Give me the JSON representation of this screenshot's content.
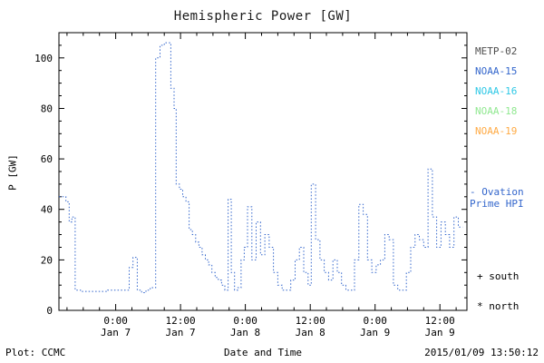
{
  "title": "Hemispheric Power [GW]",
  "ylabel": "P [GW]",
  "footer": {
    "plot": "Plot: CCMC",
    "xlabel": "Date and Time",
    "timestamp": "2015/01/09 13:50:12"
  },
  "colors": {
    "axis": "#000000",
    "accent_blue": "#3366cc"
  },
  "legend": {
    "position": "right",
    "items": [
      {
        "label": "METP-02",
        "color": "#4d4d4d"
      },
      {
        "label": "NOAA-15",
        "color": "#3366cc"
      },
      {
        "label": "NOAA-16",
        "color": "#2ec8e6"
      },
      {
        "label": "NOAA-18",
        "color": "#90e890"
      },
      {
        "label": "NOAA-19",
        "color": "#ffaa44"
      }
    ]
  },
  "annotations": {
    "ovation_line1": "- Ovation",
    "ovation_line2": "Prime HPI",
    "south": "+ south",
    "north": "* north"
  },
  "chart_data": {
    "type": "line",
    "style": "step-dotted",
    "title": "Hemispheric Power [GW]",
    "xlabel": "Date and Time",
    "ylabel": "P [GW]",
    "x_unit": "hours from 2015-01-07 00:00 UT",
    "xlim": [
      -10.5,
      65
    ],
    "ylim": [
      0,
      110
    ],
    "grid": false,
    "yticks": [
      0,
      20,
      40,
      60,
      80,
      100
    ],
    "y_minor_step": 5,
    "x_minor_step": 3,
    "xticks": [
      {
        "t": 0,
        "time": "0:00",
        "date": "Jan 7"
      },
      {
        "t": 12,
        "time": "12:00",
        "date": "Jan 7"
      },
      {
        "t": 24,
        "time": "0:00",
        "date": "Jan 8"
      },
      {
        "t": 36,
        "time": "12:00",
        "date": "Jan 8"
      },
      {
        "t": 48,
        "time": "0:00",
        "date": "Jan 9"
      },
      {
        "t": 60,
        "time": "12:00",
        "date": "Jan 9"
      }
    ],
    "series": [
      {
        "name": "NOAA-15 Ovation Prime HPI",
        "color": "#3366cc",
        "x": [
          -10.5,
          -9.2,
          -8.6,
          -8.1,
          -7.5,
          -6.5,
          -5.5,
          -4.5,
          -3.5,
          -2.5,
          -1.5,
          -0.5,
          0.5,
          1.5,
          2.5,
          3.2,
          4.0,
          4.8,
          5.6,
          6.4,
          7.4,
          8.2,
          9.0,
          10.2,
          10.8,
          11.2,
          11.8,
          12.4,
          13.0,
          13.6,
          14.2,
          14.8,
          15.4,
          16.0,
          16.6,
          17.2,
          17.8,
          18.4,
          19.0,
          19.6,
          20.2,
          20.8,
          21.4,
          22.0,
          22.6,
          23.2,
          23.8,
          24.4,
          25.2,
          26.0,
          26.8,
          27.6,
          28.4,
          29.2,
          30.0,
          30.8,
          31.6,
          32.4,
          33.2,
          34.0,
          34.8,
          35.6,
          36.2,
          37.0,
          37.8,
          38.6,
          39.4,
          40.2,
          41.0,
          41.8,
          42.6,
          43.4,
          44.2,
          45.0,
          45.8,
          46.6,
          47.4,
          48.2,
          49.0,
          49.8,
          50.6,
          51.4,
          52.2,
          53.0,
          53.8,
          54.6,
          55.4,
          56.2,
          57.0,
          57.8,
          58.6,
          59.4,
          60.2,
          61.0,
          61.8,
          62.6,
          63.4
        ],
        "y": [
          45,
          43,
          35,
          37,
          8,
          7.5,
          7.5,
          7.5,
          7.5,
          7.5,
          8,
          8,
          8,
          8,
          17,
          21,
          8,
          7,
          8,
          9,
          100,
          105,
          106,
          88,
          80,
          50,
          48,
          45,
          43,
          32,
          30,
          27,
          25,
          22,
          20,
          18,
          15,
          13,
          12,
          10,
          8,
          44,
          15,
          8,
          9,
          20,
          25,
          41,
          20,
          35,
          22,
          30,
          25,
          15,
          10,
          8,
          8,
          12,
          20,
          25,
          15,
          10,
          50,
          28,
          20,
          15,
          12,
          20,
          15,
          10,
          8,
          8,
          20,
          42,
          38,
          20,
          15,
          18,
          20,
          30,
          28,
          10,
          8,
          8,
          15,
          25,
          30,
          28,
          25,
          56,
          37,
          25,
          35,
          30,
          25,
          37,
          33
        ]
      }
    ]
  }
}
